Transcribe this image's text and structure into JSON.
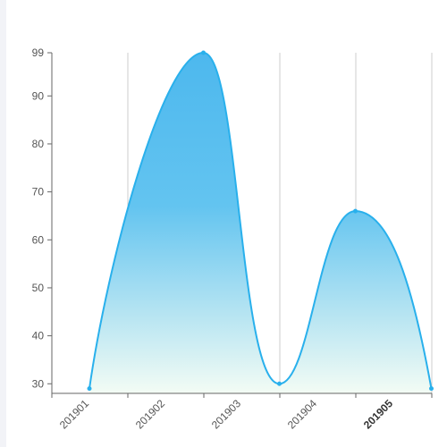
{
  "chart_data": {
    "type": "area",
    "categories": [
      "201901",
      "201902",
      "201903",
      "201904",
      "201905"
    ],
    "series": [
      {
        "values": [
          29,
          99,
          30,
          66,
          29
        ],
        "x_positions": [
          0.0,
          1.5,
          2.5,
          3.5,
          4.5
        ]
      }
    ],
    "y_ticks": [
      30,
      40,
      50,
      60,
      70,
      80,
      90,
      99
    ],
    "ylim": [
      28,
      99
    ],
    "highlighted_category": "201905",
    "grid": "vertical",
    "colors": {
      "line": "#29b0ec",
      "fill_top": "#4db8ee",
      "fill_bottom": "#f3fcf4",
      "grid": "#cccccc",
      "axis": "#666666"
    }
  }
}
